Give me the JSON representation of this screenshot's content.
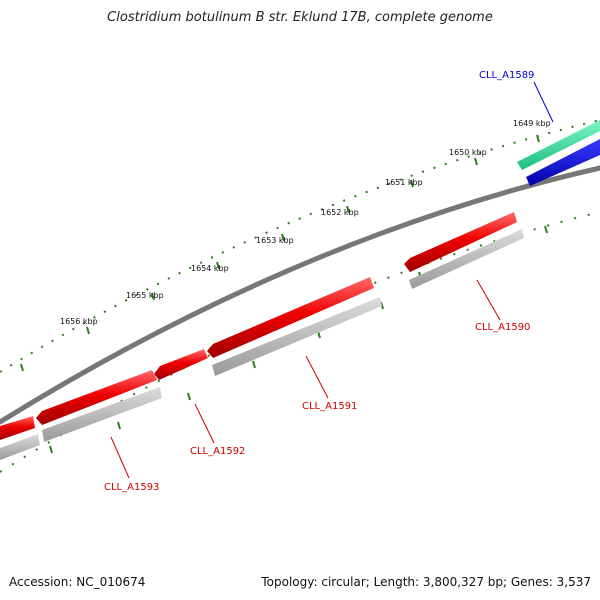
{
  "title": "Clostridium botulinum B str. Eklund 17B, complete genome",
  "accession": "Accession: NC_010674",
  "topology": "Topology: circular; Length: 3,800,327 bp; Genes: 3,537",
  "scale_labels": [
    "1649 kbp",
    "1650 kbp",
    "1651 kbp",
    "1652 kbp",
    "1653 kbp",
    "1654 kbp",
    "1655 kbp",
    "1656 kbp"
  ],
  "genes": [
    {
      "label": "CLL_A1589",
      "color": "#0000cc"
    },
    {
      "label": "CLL_A1590",
      "color": "#cc0000"
    },
    {
      "label": "CLL_A1591",
      "color": "#cc0000"
    },
    {
      "label": "CLL_A1592",
      "color": "#cc0000"
    },
    {
      "label": "CLL_A1593",
      "color": "#cc0000"
    }
  ],
  "colors": {
    "forward_blue": "#0000dd",
    "forward_green": "#22dd99",
    "reverse_red": "#ee0000",
    "shadow_gray": "#b8b8b8",
    "backbone": "#777777",
    "tick_green": "#2e7d1e"
  }
}
